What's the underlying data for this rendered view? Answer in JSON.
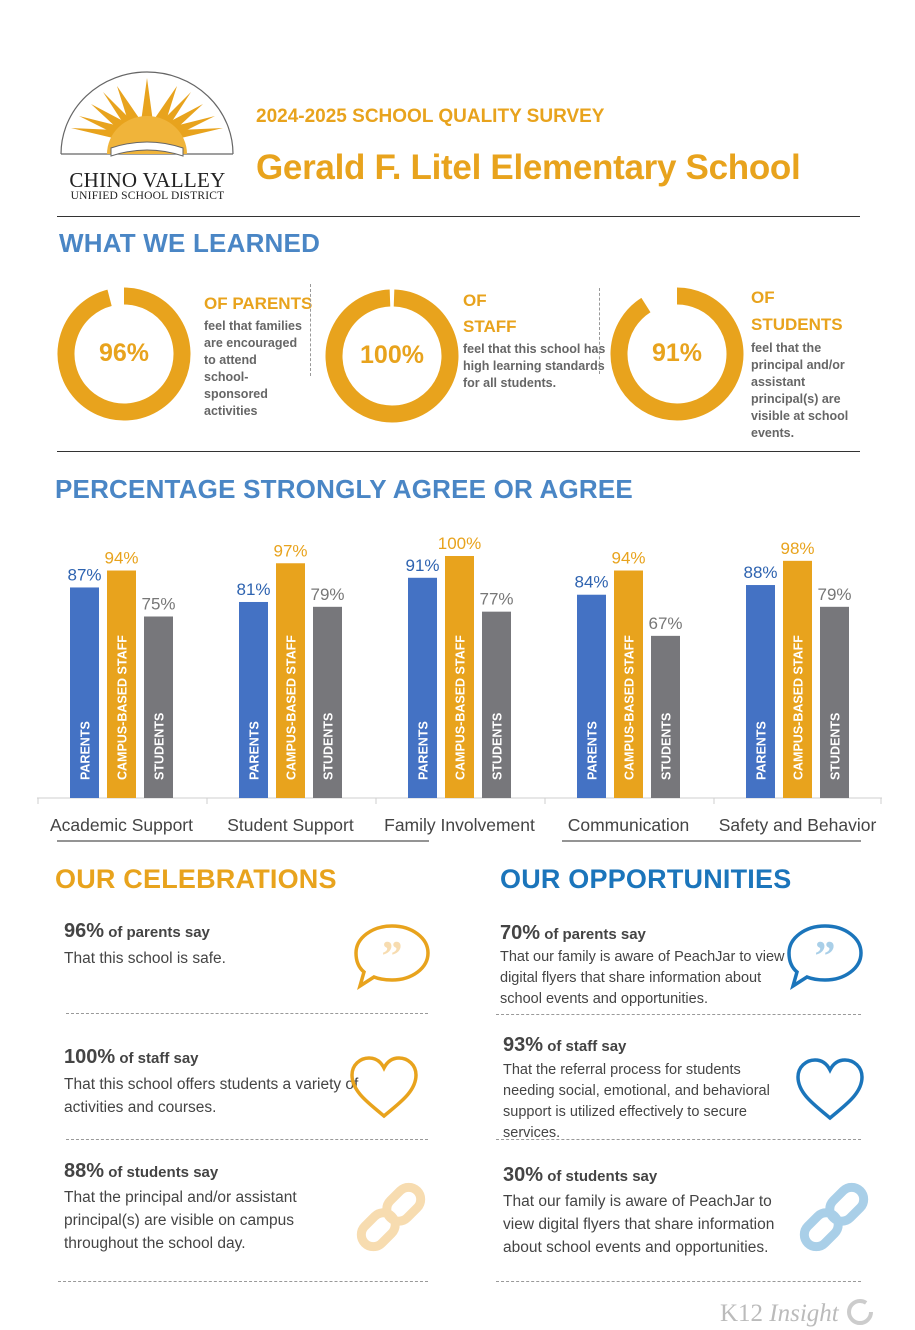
{
  "header": {
    "logo_title": "CHINO VALLEY",
    "logo_subtitle": "UNIFIED SCHOOL DISTRICT",
    "survey_year": "2024-2025 SCHOOL QUALITY SURVEY",
    "school_name": "Gerald F. Litel Elementary School"
  },
  "learned": {
    "heading": "WHAT WE LEARNED",
    "stats": [
      {
        "percent_value": 96,
        "percent_label": "96%",
        "group_line1": "OF  PARENTS",
        "group_line2": "",
        "description": "feel that families are encouraged to attend school-sponsored activities"
      },
      {
        "percent_value": 100,
        "percent_label": "100%",
        "group_line1": "OF",
        "group_line2": "STAFF",
        "description": "feel that this school has high learning standards for all students."
      },
      {
        "percent_value": 91,
        "percent_label": "91%",
        "group_line1": "OF",
        "group_line2": "STUDENTS",
        "description": "feel that the principal and/or assistant principal(s) are visible at school events."
      }
    ]
  },
  "agree": {
    "heading": "PERCENTAGE STRONGLY AGREE OR AGREE"
  },
  "chart_data": {
    "type": "bar",
    "categories": [
      "Academic Support",
      "Student Support",
      "Family Involvement",
      "Communication",
      "Safety and Behavior"
    ],
    "series": [
      {
        "name": "PARENTS",
        "values": [
          87,
          81,
          91,
          84,
          88
        ],
        "color": "#4472c4"
      },
      {
        "name": "CAMPUS-BASED STAFF",
        "values": [
          94,
          97,
          100,
          94,
          98
        ],
        "color": "#e8a31d"
      },
      {
        "name": "STUDENTS",
        "values": [
          75,
          79,
          77,
          67,
          79
        ],
        "color": "#77777b"
      }
    ],
    "data_labels": [
      [
        "87%",
        "94%",
        "75%"
      ],
      [
        "81%",
        "97%",
        "79%"
      ],
      [
        "91%",
        "100%",
        "77%"
      ],
      [
        "84%",
        "94%",
        "67%"
      ],
      [
        "88%",
        "98%",
        "79%"
      ]
    ],
    "ylim": [
      0,
      100
    ]
  },
  "celebrations": {
    "heading": "OUR CELEBRATIONS",
    "items": [
      {
        "pct": "96%",
        "group": " of parents say",
        "text": "That this school is safe.",
        "icon": "speech-bubble-icon"
      },
      {
        "pct": "100%",
        "group": " of staff say",
        "text": "That this school offers students a variety of activities and courses.",
        "icon": "heart-icon"
      },
      {
        "pct": "88%",
        "group": " of students say",
        "text": "That the principal and/or assistant principal(s) are visible on campus throughout the school day.",
        "icon": "link-icon"
      }
    ]
  },
  "opportunities": {
    "heading": "OUR OPPORTUNITIES",
    "items": [
      {
        "pct": "70%",
        "group": " of parents say",
        "text": "That our family is aware of PeachJar to view digital flyers that share information about school events and opportunities.",
        "icon": "speech-bubble-icon"
      },
      {
        "pct": "93%",
        "group": " of staff say",
        "text": "That the referral process for students needing social, emotional, and behavioral support is utilized effectively to secure services.",
        "icon": "heart-icon"
      },
      {
        "pct": "30%",
        "group": " of students say",
        "text": "That our family is aware of PeachJar to view digital flyers that share information about school events and opportunities.",
        "icon": "link-icon"
      }
    ]
  },
  "colors": {
    "gold": "#e8a31d",
    "light_gold": "#f7dcb0",
    "blue_heading": "#4a86c5",
    "opportunity_blue": "#1b75bb",
    "light_blue": "#a9cfe8",
    "parents_bar": "#4472c4",
    "staff_bar": "#e8a31d",
    "students_bar": "#77777b"
  },
  "footer": {
    "brand_a": "K12 ",
    "brand_b": "Insight"
  }
}
